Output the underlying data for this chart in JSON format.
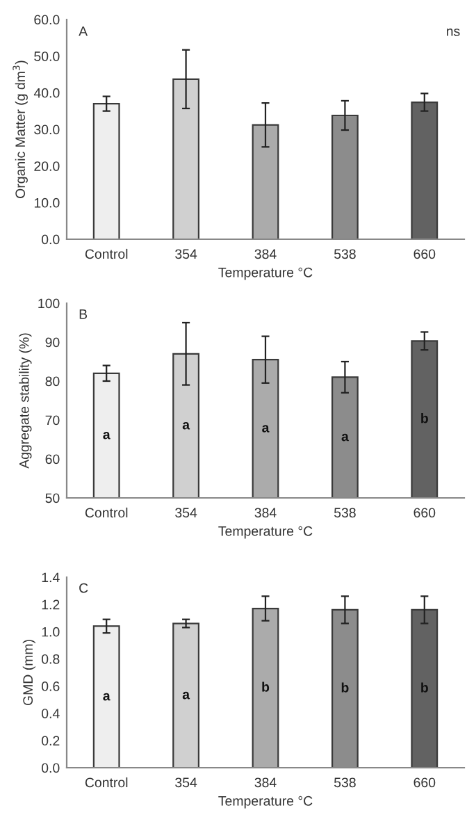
{
  "chart_data": [
    {
      "type": "bar",
      "title": "A",
      "xlabel": "Temperature °C",
      "ylabel": "Organic Matter (g dm$^{3}$)",
      "categories": [
        "Control",
        "354",
        "384",
        "538",
        "660"
      ],
      "values": [
        37.0,
        43.7,
        31.2,
        33.8,
        37.4
      ],
      "errors": [
        2.0,
        8.0,
        6.0,
        4.0,
        2.4
      ],
      "colors": [
        "#eeeeee",
        "#d0d0d0",
        "#ababab",
        "#8c8c8c",
        "#626262"
      ],
      "ylim": [
        0,
        60
      ],
      "yticks": [
        {
          "value": 0,
          "label": "0.0"
        },
        {
          "value": 10,
          "label": "10.0"
        },
        {
          "value": 20,
          "label": "20.0"
        },
        {
          "value": 30,
          "label": "30.0"
        },
        {
          "value": 40,
          "label": "40.0"
        },
        {
          "value": 50,
          "label": "50.0"
        },
        {
          "value": 60,
          "label": "60.0"
        }
      ],
      "annotations": [
        "ns"
      ]
    },
    {
      "type": "bar",
      "title": "B",
      "xlabel": "Temperature °C",
      "ylabel": "Aggregate stability (%)",
      "categories": [
        "Control",
        "354",
        "384",
        "538",
        "660"
      ],
      "values": [
        82.0,
        87.0,
        85.5,
        81.0,
        90.3
      ],
      "errors": [
        2.0,
        8.0,
        6.0,
        4.0,
        2.3
      ],
      "colors": [
        "#eeeeee",
        "#d0d0d0",
        "#ababab",
        "#8c8c8c",
        "#626262"
      ],
      "ylim": [
        50,
        100
      ],
      "yticks": [
        50,
        60,
        70,
        80,
        90,
        100
      ],
      "value_labels": [
        "a",
        "a",
        "a",
        "a",
        "b"
      ]
    },
    {
      "type": "bar",
      "title": "C",
      "xlabel": "Temperature °C",
      "ylabel": "GMD (mm)",
      "categories": [
        "Control",
        "354",
        "384",
        "538",
        "660"
      ],
      "values": [
        1.04,
        1.06,
        1.17,
        1.16,
        1.16
      ],
      "errors": [
        0.05,
        0.03,
        0.09,
        0.1,
        0.1
      ],
      "colors": [
        "#eeeeee",
        "#d0d0d0",
        "#ababab",
        "#8c8c8c",
        "#626262"
      ],
      "ylim": [
        0,
        1.4
      ],
      "yticks": [
        {
          "value": 0,
          "label": "0.0"
        },
        {
          "value": 0.2,
          "label": "0.2"
        },
        {
          "value": 0.4,
          "label": "0.4"
        },
        {
          "value": 0.6,
          "label": "0.6"
        },
        {
          "value": 0.8,
          "label": "0.8"
        },
        {
          "value": 1.0,
          "label": "1.0"
        },
        {
          "value": 1.2,
          "label": "1.2"
        },
        {
          "value": 1.4,
          "label": "1.4"
        }
      ],
      "value_labels": [
        "a",
        "a",
        "b",
        "b",
        "b"
      ]
    }
  ]
}
